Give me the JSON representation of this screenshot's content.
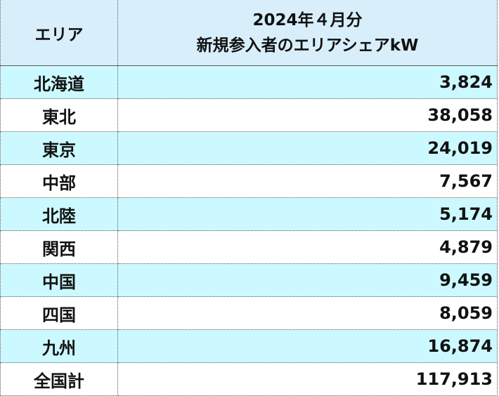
{
  "header": {
    "area_label": "エリア",
    "value_label_line1": "2024年４月分",
    "value_label_line2": "新規参入者のエリアシェアkW"
  },
  "rows": [
    {
      "area": "北海道",
      "value": "3,824"
    },
    {
      "area": "東北",
      "value": "38,058"
    },
    {
      "area": "東京",
      "value": "24,019"
    },
    {
      "area": "中部",
      "value": "7,567"
    },
    {
      "area": "北陸",
      "value": "5,174"
    },
    {
      "area": "関西",
      "value": "4,879"
    },
    {
      "area": "中国",
      "value": "9,459"
    },
    {
      "area": "四国",
      "value": "8,059"
    },
    {
      "area": "九州",
      "value": "16,874"
    },
    {
      "area": "全国計",
      "value": "117,913"
    }
  ],
  "colors": {
    "header_bg": "#d8effb",
    "alt_row_bg": "#ccf9ff",
    "plain_row_bg": "#ffffff",
    "border": "#555555"
  }
}
